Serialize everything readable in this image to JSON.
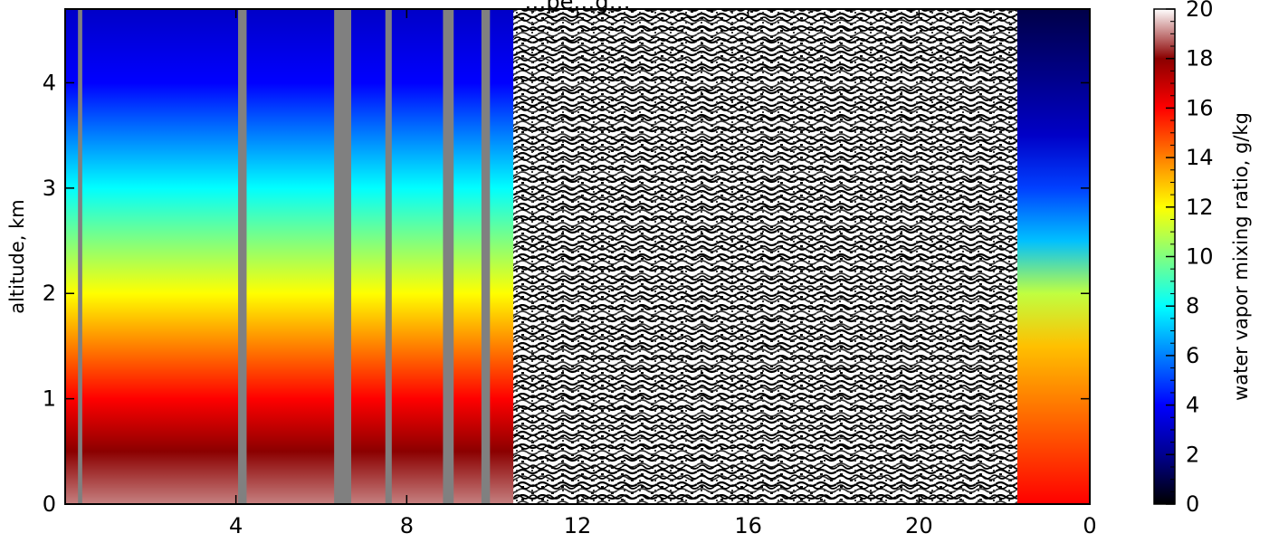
{
  "chart_data": {
    "type": "heatmap",
    "title": "…pe…g…",
    "xlabel": "",
    "ylabel": "altitude, km",
    "x_tick_labels": [
      "4",
      "8",
      "12",
      "16",
      "20",
      "0"
    ],
    "x_tick_values_hours": [
      4,
      8,
      12,
      16,
      20,
      24
    ],
    "xlim_hours": [
      0,
      24
    ],
    "y_tick_labels": [
      "0",
      "1",
      "2",
      "3",
      "4"
    ],
    "y_tick_values": [
      0,
      1,
      2,
      3,
      4
    ],
    "ylim": [
      0,
      4.7
    ],
    "colorbar": {
      "label": "water vapor mixing ratio, g/kg",
      "tick_labels": [
        "0",
        "2",
        "4",
        "6",
        "8",
        "10",
        "12",
        "14",
        "16",
        "18",
        "20"
      ],
      "tick_values": [
        0,
        2,
        4,
        6,
        8,
        10,
        12,
        14,
        16,
        18,
        20
      ],
      "range": [
        0,
        20
      ],
      "colormap": "jet",
      "colors": [
        "#000000",
        "#00008f",
        "#0000ff",
        "#0080ff",
        "#00ffff",
        "#80ff80",
        "#ffff00",
        "#ff8000",
        "#ff0000",
        "#8b0000",
        "#ffffff"
      ]
    },
    "missing_color": "#808080",
    "noise_region_hours": [
      10.5,
      22.3
    ],
    "missing_bands_hours": [
      [
        0.3,
        0.4
      ],
      [
        4.05,
        4.25
      ],
      [
        6.3,
        6.7
      ],
      [
        7.5,
        7.65
      ],
      [
        8.85,
        9.1
      ],
      [
        9.75,
        9.95
      ]
    ],
    "profiles": [
      {
        "time_range_hours": [
          0,
          10.5
        ],
        "altitude_km": [
          0,
          0.5,
          1,
          1.5,
          2,
          2.5,
          3,
          3.5,
          4,
          4.7
        ],
        "mixing_ratio_gkg": [
          19,
          18,
          16,
          14,
          12,
          10,
          8,
          6,
          4,
          3
        ]
      },
      {
        "time_range_hours": [
          22.3,
          24
        ],
        "altitude_km": [
          0,
          0.5,
          1,
          1.5,
          2,
          2.5,
          3,
          3.5,
          4,
          4.7
        ],
        "mixing_ratio_gkg": [
          16,
          15,
          14,
          13,
          11,
          7,
          5,
          3,
          2,
          1
        ]
      }
    ]
  }
}
